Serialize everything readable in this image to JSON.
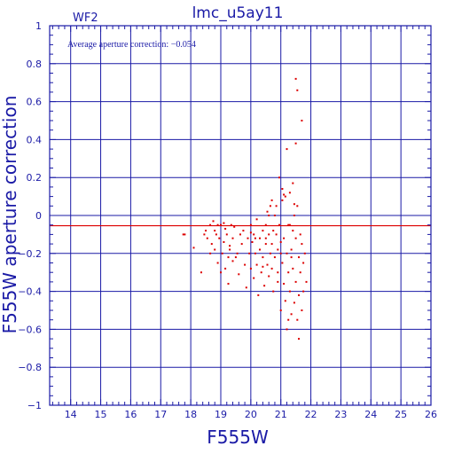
{
  "chart_data": {
    "type": "scatter",
    "title": "lmc_u5ay11",
    "panel_label": "WF2",
    "annotation": "Average aperture correction: −0.054",
    "xlabel": "F555W",
    "ylabel": "F555W aperture correction",
    "xlim": [
      13.3,
      26
    ],
    "ylim": [
      -1,
      1
    ],
    "x_ticks": [
      14,
      15,
      16,
      17,
      18,
      19,
      20,
      21,
      22,
      23,
      24,
      25,
      26
    ],
    "x_tick_labels": [
      "14",
      "15",
      "16",
      "17",
      "18",
      "19",
      "20",
      "21",
      "22",
      "23",
      "24",
      "25",
      "26"
    ],
    "y_ticks": [
      -1,
      -0.8,
      -0.6,
      -0.4,
      -0.2,
      0,
      0.2,
      0.4,
      0.6,
      0.8,
      1
    ],
    "y_tick_labels": [
      "−1",
      "−0.8",
      "−0.6",
      "−0.4",
      "−0.2",
      "0",
      "0.2",
      "0.4",
      "0.6",
      "0.8",
      "1"
    ],
    "grid": true,
    "reference_line_y": -0.054,
    "colors": {
      "axes": "#1a1aa6",
      "points": "#dd0000",
      "reference_line": "#dd0000"
    },
    "series": [
      {
        "x": [
          17.75,
          17.8,
          18.1,
          18.35,
          18.45,
          18.5,
          18.55,
          18.65,
          18.65,
          18.7,
          18.75,
          18.8,
          18.85,
          18.9,
          18.95,
          19.0,
          19.0,
          19.05,
          19.1,
          19.15,
          19.15,
          19.2,
          19.25,
          19.25,
          19.3,
          19.35,
          19.4,
          19.4,
          19.45,
          19.55,
          19.6,
          19.65,
          19.7,
          19.75,
          19.8,
          19.85,
          19.9,
          19.95,
          20.0,
          20.0,
          20.05,
          20.1,
          20.1,
          20.15,
          20.2,
          20.2,
          20.25,
          20.3,
          20.3,
          20.35,
          20.4,
          20.4,
          20.45,
          20.5,
          20.5,
          20.55,
          20.55,
          20.6,
          20.6,
          20.65,
          20.65,
          20.7,
          20.7,
          20.75,
          20.75,
          20.8,
          20.8,
          20.85,
          20.9,
          20.9,
          20.95,
          21.0,
          21.0,
          21.05,
          21.05,
          21.1,
          21.1,
          21.15,
          21.15,
          21.2,
          21.2,
          21.25,
          21.25,
          21.3,
          21.3,
          21.35,
          21.35,
          21.4,
          21.4,
          21.45,
          21.45,
          21.5,
          21.5,
          21.55,
          21.55,
          21.6,
          21.6,
          21.65,
          21.65,
          21.7,
          21.7,
          21.75,
          21.75,
          21.8,
          21.85,
          21.5,
          21.55,
          21.5,
          21.2,
          21.1,
          21.05,
          20.95,
          20.6,
          20.7,
          20.85,
          21.4,
          21.45,
          21.6,
          21.7,
          19.5,
          18.9,
          20.4,
          20.5,
          21.0,
          21.3,
          21.35,
          20.15,
          19.3,
          18.8,
          19.1,
          20.0,
          20.9,
          21.25
        ],
        "y": [
          -0.1,
          -0.1,
          -0.17,
          -0.3,
          -0.1,
          -0.08,
          -0.12,
          -0.2,
          -0.05,
          -0.15,
          -0.03,
          -0.18,
          -0.1,
          -0.25,
          -0.12,
          -0.3,
          -0.05,
          -0.2,
          -0.14,
          -0.28,
          -0.07,
          -0.1,
          -0.22,
          -0.36,
          -0.16,
          -0.05,
          -0.24,
          -0.12,
          -0.06,
          -0.2,
          -0.31,
          -0.1,
          -0.15,
          -0.08,
          -0.26,
          -0.38,
          -0.12,
          -0.2,
          -0.05,
          -0.28,
          -0.14,
          -0.33,
          -0.1,
          -0.2,
          -0.02,
          -0.26,
          -0.42,
          -0.12,
          -0.18,
          -0.3,
          -0.08,
          -0.22,
          -0.37,
          -0.15,
          -0.05,
          -0.26,
          0.02,
          -0.1,
          -0.32,
          -0.2,
          0.05,
          -0.15,
          -0.28,
          -0.4,
          -0.08,
          -0.22,
          0.0,
          -0.1,
          -0.3,
          -0.18,
          -0.05,
          -0.14,
          -0.5,
          -0.25,
          0.08,
          -0.36,
          -0.12,
          -0.45,
          0.1,
          -0.2,
          -0.6,
          -0.05,
          -0.3,
          0.12,
          -0.4,
          -0.18,
          -0.52,
          -0.08,
          -0.28,
          -0.46,
          0.0,
          -0.35,
          -0.12,
          -0.55,
          0.05,
          -0.22,
          -0.42,
          -0.1,
          -0.3,
          -0.5,
          -0.15,
          -0.25,
          -0.4,
          -0.2,
          -0.35,
          0.72,
          0.66,
          0.38,
          0.35,
          0.11,
          0.14,
          0.2,
          0.0,
          0.08,
          0.05,
          0.17,
          0.06,
          -0.65,
          0.5,
          -0.22,
          -0.05,
          -0.27,
          -0.12,
          -0.2,
          -0.05,
          -0.22,
          -0.12,
          -0.18,
          -0.08,
          -0.04,
          -0.09,
          -0.35,
          -0.55
        ],
        "color": "#dd0000"
      }
    ]
  }
}
